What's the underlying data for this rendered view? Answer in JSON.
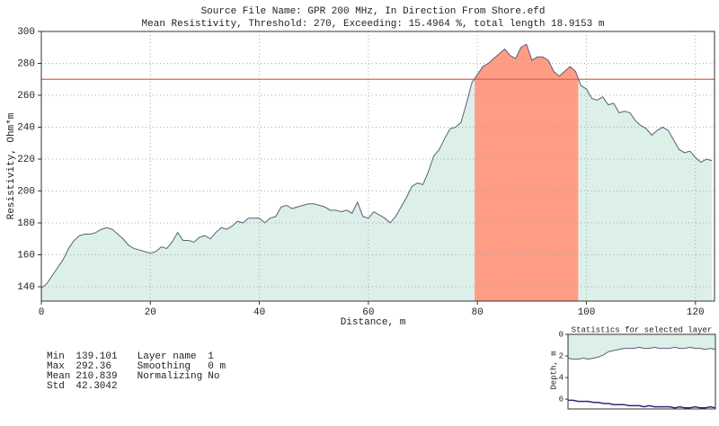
{
  "chart_data": [
    {
      "type": "area",
      "title": "Source File Name: GPR 200 MHz, In Direction From Shore.efd",
      "subtitle": "Mean Resistivity, Threshold: 270, Exceeding: 15.4964 %, total length 18.9153 m",
      "x_label": "Distance, m",
      "y_label": "Resistivity, Ohm*m",
      "x": [
        0,
        1,
        2,
        3,
        4,
        5,
        6,
        7,
        8,
        9,
        10,
        11,
        12,
        13,
        14,
        15,
        16,
        17,
        18,
        19,
        20,
        21,
        22,
        23,
        24,
        25,
        26,
        27,
        28,
        29,
        30,
        31,
        32,
        33,
        34,
        35,
        36,
        37,
        38,
        39,
        40,
        41,
        42,
        43,
        44,
        45,
        46,
        47,
        48,
        49,
        50,
        51,
        52,
        53,
        54,
        55,
        56,
        57,
        58,
        59,
        60,
        61,
        62,
        63,
        64,
        65,
        66,
        67,
        68,
        69,
        70,
        71,
        72,
        73,
        74,
        75,
        76,
        77,
        78,
        79,
        80,
        81,
        82,
        83,
        84,
        85,
        86,
        87,
        88,
        89,
        90,
        91,
        92,
        93,
        94,
        95,
        96,
        97,
        98,
        99,
        100,
        101,
        102,
        103,
        104,
        105,
        106,
        107,
        108,
        109,
        110,
        111,
        112,
        113,
        114,
        115,
        116,
        117,
        118,
        119,
        120,
        121,
        122,
        123
      ],
      "values": [
        139,
        142,
        147,
        152,
        157,
        164,
        169,
        172,
        173,
        173,
        174,
        176,
        177,
        176,
        173,
        170,
        166,
        164,
        163,
        162,
        161,
        162,
        165,
        164,
        168,
        174,
        169,
        169,
        168,
        171,
        172,
        170,
        174,
        177,
        176,
        178,
        181,
        180,
        183,
        183,
        183,
        180,
        183,
        184,
        190,
        191,
        189,
        190,
        191,
        192,
        192,
        191,
        190,
        188,
        188,
        187,
        188,
        186,
        193,
        184,
        183,
        187,
        185,
        183,
        180,
        184,
        190,
        196,
        203,
        205,
        204,
        212,
        222,
        226,
        233,
        239,
        240,
        243,
        255,
        268,
        273,
        278,
        280,
        283,
        286,
        289,
        285,
        283,
        290,
        292,
        282,
        284,
        284,
        282,
        275,
        272,
        275,
        278,
        275,
        266,
        264,
        258,
        257,
        259,
        254,
        255,
        249,
        250,
        249,
        244,
        241,
        239,
        235,
        238,
        240,
        238,
        232,
        226,
        224,
        225,
        221,
        218,
        220,
        219
      ],
      "line_color": "#56607a",
      "fill_color": "#dcefe8",
      "threshold": 270,
      "threshold_color": "#e8604c",
      "highlight_range": [
        79.5,
        98.5
      ],
      "highlight_color": "#ff9c86",
      "xlim": [
        0,
        123.5
      ],
      "ylim": [
        131,
        300
      ],
      "xticks": [
        0,
        20,
        40,
        60,
        80,
        100,
        120
      ],
      "yticks": [
        140,
        160,
        180,
        200,
        220,
        240,
        260,
        280,
        300
      ],
      "grid": true
    },
    {
      "type": "line",
      "title": "Statistics for selected layer",
      "y_label": "Depth, m",
      "ylim": [
        0,
        6.9
      ],
      "y_reversed": true,
      "yticks": [
        0,
        2,
        4,
        6
      ],
      "grid": false,
      "fill_color": "#dcefe8",
      "series": [
        {
          "color": "#56607a",
          "values": [
            2.2,
            2.3,
            2.3,
            2.2,
            2.3,
            2.2,
            2.1,
            1.9,
            1.6,
            1.5,
            1.4,
            1.3,
            1.3,
            1.3,
            1.2,
            1.3,
            1.3,
            1.2,
            1.3,
            1.3,
            1.3,
            1.2,
            1.3,
            1.3,
            1.2,
            1.3,
            1.3,
            1.4,
            1.3,
            1.4
          ]
        },
        {
          "color": "#2a2a7a",
          "values": [
            6.1,
            6.1,
            6.2,
            6.2,
            6.2,
            6.3,
            6.3,
            6.4,
            6.4,
            6.5,
            6.5,
            6.5,
            6.6,
            6.6,
            6.6,
            6.7,
            6.6,
            6.7,
            6.7,
            6.7,
            6.7,
            6.8,
            6.7,
            6.8,
            6.8,
            6.7,
            6.8,
            6.8,
            6.7,
            6.8
          ]
        }
      ]
    }
  ],
  "stats": {
    "rows": [
      [
        "Min",
        139.101,
        "Layer name",
        1
      ],
      [
        "Max",
        292.36,
        "Smoothing",
        "0 m"
      ],
      [
        "Mean",
        210.839,
        "Normalizing",
        "No"
      ],
      [
        "Std",
        42.3042
      ]
    ]
  }
}
